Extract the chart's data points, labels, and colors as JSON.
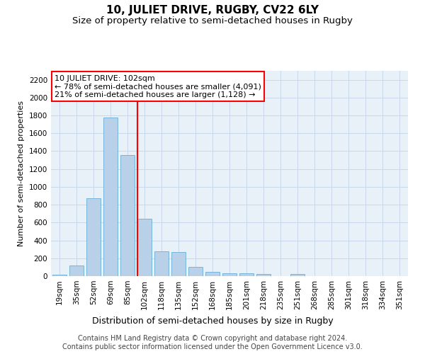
{
  "title": "10, JULIET DRIVE, RUGBY, CV22 6LY",
  "subtitle": "Size of property relative to semi-detached houses in Rugby",
  "xlabel": "Distribution of semi-detached houses by size in Rugby",
  "ylabel": "Number of semi-detached properties",
  "bar_labels": [
    "19sqm",
    "35sqm",
    "52sqm",
    "69sqm",
    "85sqm",
    "102sqm",
    "118sqm",
    "135sqm",
    "152sqm",
    "168sqm",
    "185sqm",
    "201sqm",
    "218sqm",
    "235sqm",
    "251sqm",
    "268sqm",
    "285sqm",
    "301sqm",
    "318sqm",
    "334sqm",
    "351sqm"
  ],
  "bar_values": [
    15,
    120,
    870,
    1780,
    1360,
    645,
    275,
    270,
    100,
    50,
    35,
    30,
    20,
    0,
    20,
    0,
    0,
    0,
    0,
    0,
    0
  ],
  "bar_color": "#b8d0e8",
  "bar_edge_color": "#6aaed6",
  "vline_color": "red",
  "vline_index": 5,
  "annotation_text": "10 JULIET DRIVE: 102sqm\n← 78% of semi-detached houses are smaller (4,091)\n21% of semi-detached houses are larger (1,128) →",
  "annotation_box_color": "white",
  "annotation_box_edge_color": "red",
  "ylim": [
    0,
    2300
  ],
  "yticks": [
    0,
    200,
    400,
    600,
    800,
    1000,
    1200,
    1400,
    1600,
    1800,
    2000,
    2200
  ],
  "grid_color": "#c8d8ea",
  "bg_color": "#e8f0f8",
  "footer": "Contains HM Land Registry data © Crown copyright and database right 2024.\nContains public sector information licensed under the Open Government Licence v3.0.",
  "title_fontsize": 11,
  "subtitle_fontsize": 9.5,
  "xlabel_fontsize": 9,
  "ylabel_fontsize": 8,
  "tick_fontsize": 7.5,
  "annotation_fontsize": 8,
  "footer_fontsize": 7
}
